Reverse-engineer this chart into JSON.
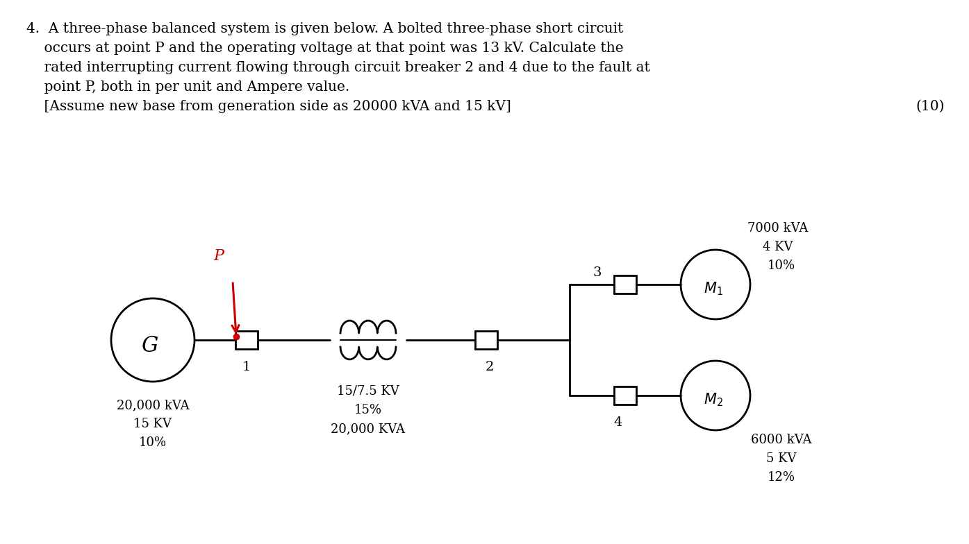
{
  "background_color": "#ffffff",
  "text_color": "#000000",
  "line_color": "#000000",
  "arrow_color": "#cc0000",
  "question_lines": [
    "4.  A three-phase balanced system is given below. A bolted three-phase short circuit",
    "    occurs at point P and the operating voltage at that point was 13 kV. Calculate the",
    "    rated interrupting current flowing through circuit breaker 2 and 4 due to the fault at",
    "    point P, both in per unit and Ampere value.",
    "    [Assume new base from generation side as 20000 kVA and 15 kV]"
  ],
  "marks_text": "(10)",
  "gen_kva": "20,000 kVA",
  "gen_kv": "15 KV",
  "gen_pct": "10%",
  "tx_label": "15/7.5 KV",
  "tx_pct": "15%",
  "tx_kva": "20,000 KVA",
  "cb1_label": "1",
  "cb2_label": "2",
  "cb3_label": "3",
  "cb4_label": "4",
  "motor1_kva": "7000 kVA",
  "motor1_kv": "4 KV",
  "motor1_pct": "10%",
  "motor2_kva": "6000 kVA",
  "motor2_kv": "5 KV",
  "motor2_pct": "12%",
  "P_label": "P"
}
